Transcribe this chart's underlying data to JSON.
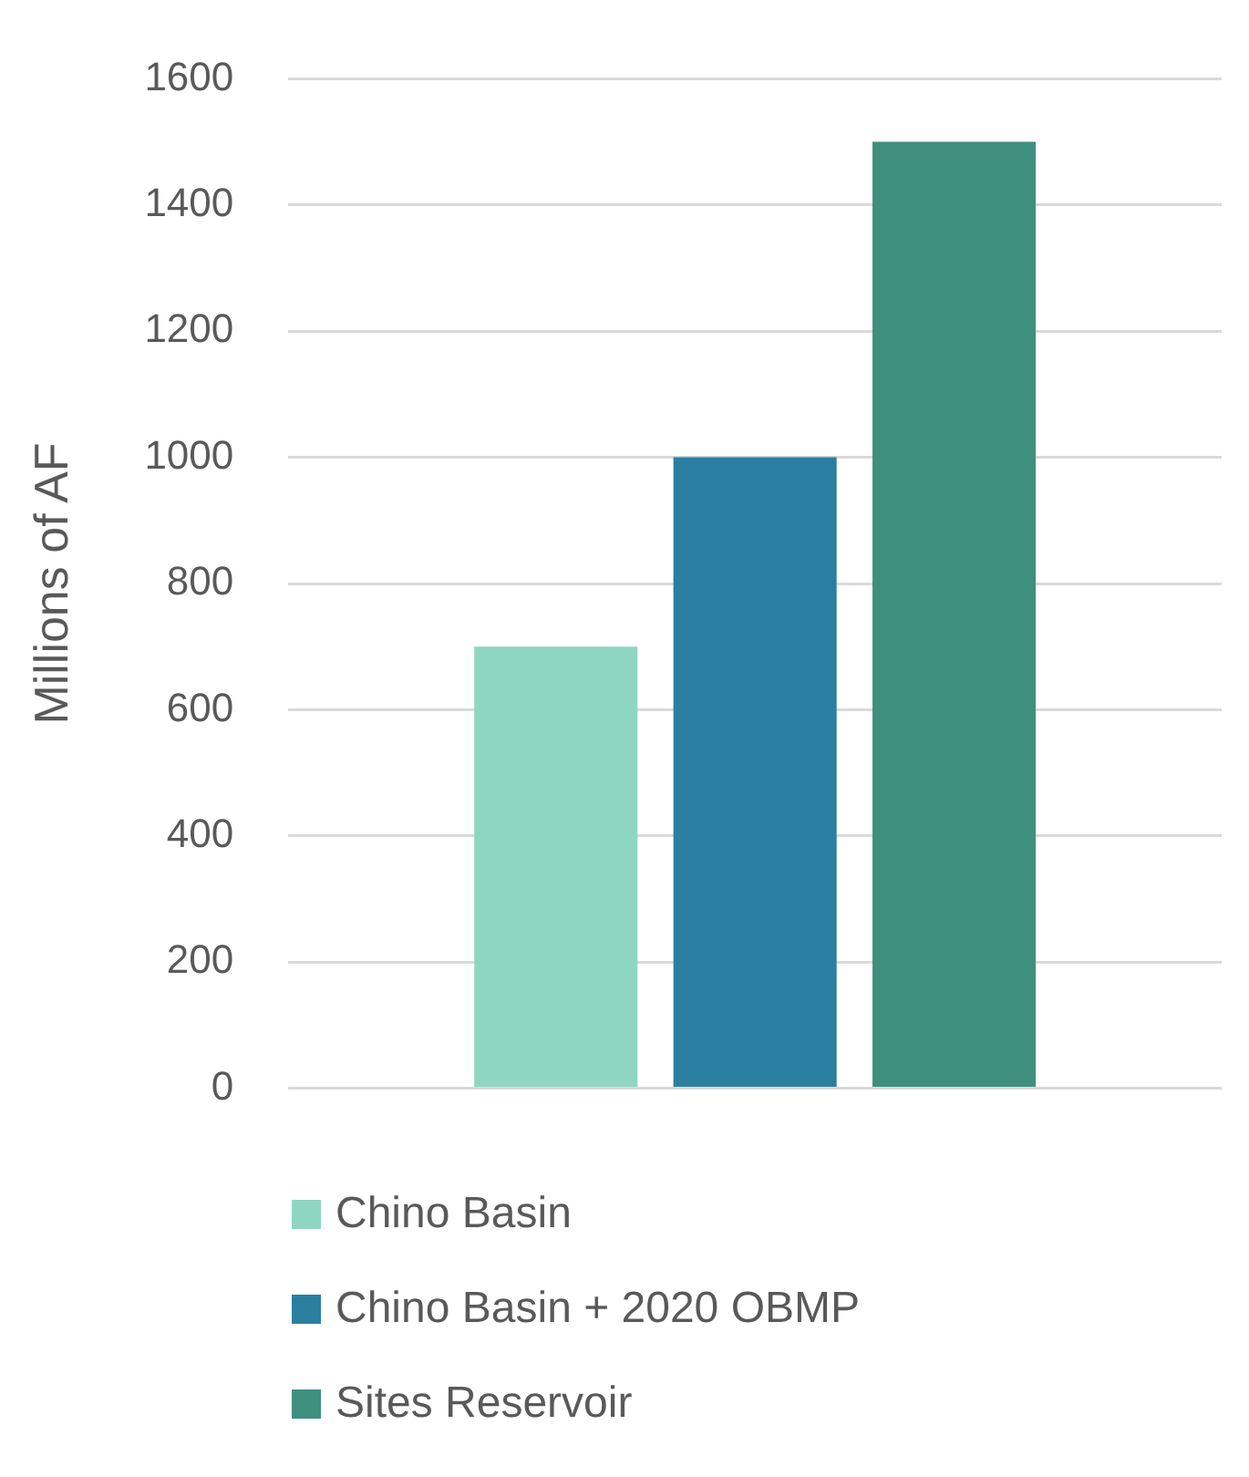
{
  "chart_data": {
    "type": "bar",
    "ylabel": "Millions of AF",
    "categories": [
      null
    ],
    "series": [
      {
        "name": "Chino Basin",
        "color": "#8fd6c0",
        "values": [
          700
        ]
      },
      {
        "name": "Chino Basin + 2020 OBMP",
        "color": "#2a7fa0",
        "values": [
          1000
        ]
      },
      {
        "name": "Sites Reservoir",
        "color": "#3f8f7f",
        "values": [
          1500
        ]
      }
    ],
    "ylim": [
      0,
      1600
    ],
    "yticks": [
      0,
      200,
      400,
      600,
      800,
      1000,
      1200,
      1400,
      1600
    ],
    "grid": "y",
    "legend": "bottom",
    "tick_labels": "y"
  }
}
